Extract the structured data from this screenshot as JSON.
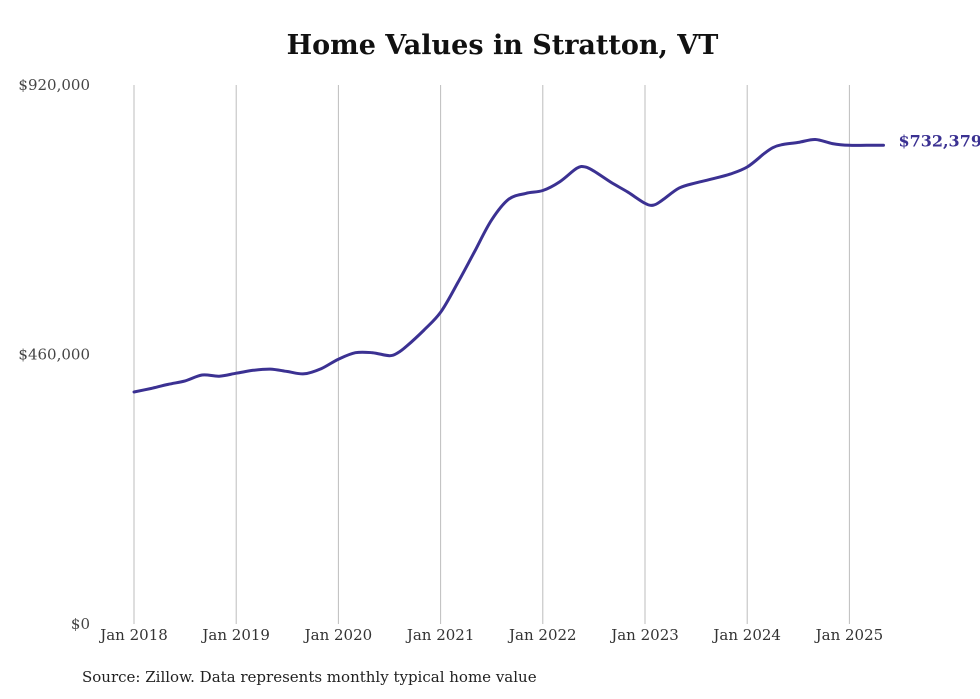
{
  "chart_data": {
    "type": "line",
    "title": "Home Values in Stratton, VT",
    "xlabel": "",
    "ylabel": "",
    "ylim": [
      0,
      920000
    ],
    "y_ticks": [
      {
        "value": 0,
        "label": "$0"
      },
      {
        "value": 460000,
        "label": "$460,000"
      },
      {
        "value": 920000,
        "label": "$920,000"
      }
    ],
    "x_ticks": [
      "Jan 2018",
      "Jan 2019",
      "Jan 2020",
      "Jan 2021",
      "Jan 2022",
      "Jan 2023",
      "Jan 2024",
      "Jan 2025"
    ],
    "grid": "vertical",
    "legend": "none",
    "line_color": "#3b3192",
    "series": [
      {
        "x": [
          "2018-01",
          "2018-03",
          "2018-05",
          "2018-07",
          "2018-09",
          "2018-11",
          "2019-01",
          "2019-03",
          "2019-05",
          "2019-07",
          "2019-09",
          "2019-11",
          "2020-01",
          "2020-03",
          "2020-05",
          "2020-07",
          "2020-08",
          "2020-09",
          "2020-11",
          "2021-01",
          "2021-03",
          "2021-05",
          "2021-07",
          "2021-09",
          "2021-11",
          "2022-01",
          "2022-03",
          "2022-05",
          "2022-06",
          "2022-07",
          "2022-09",
          "2022-11",
          "2023-01",
          "2023-02",
          "2023-03",
          "2023-05",
          "2023-07",
          "2023-09",
          "2023-11",
          "2024-01",
          "2024-03",
          "2024-04",
          "2024-05",
          "2024-07",
          "2024-09",
          "2024-11",
          "2025-01",
          "2025-03",
          "2025-05"
        ],
        "values": [
          396000,
          402000,
          409000,
          415000,
          425000,
          423000,
          428000,
          433000,
          435000,
          431000,
          427000,
          436000,
          452000,
          463000,
          463000,
          458000,
          463000,
          474000,
          501000,
          532000,
          582000,
          636000,
          690000,
          725000,
          735000,
          740000,
          755000,
          778000,
          780000,
          773000,
          754000,
          737000,
          718000,
          715000,
          723000,
          744000,
          753000,
          760000,
          768000,
          780000,
          803000,
          813000,
          818000,
          822000,
          827000,
          820000,
          817000,
          817000,
          817000
        ]
      }
    ],
    "annotations": [
      {
        "text": "$732,379"
      }
    ],
    "source": "Source: Zillow. Data represents monthly typical home value"
  }
}
